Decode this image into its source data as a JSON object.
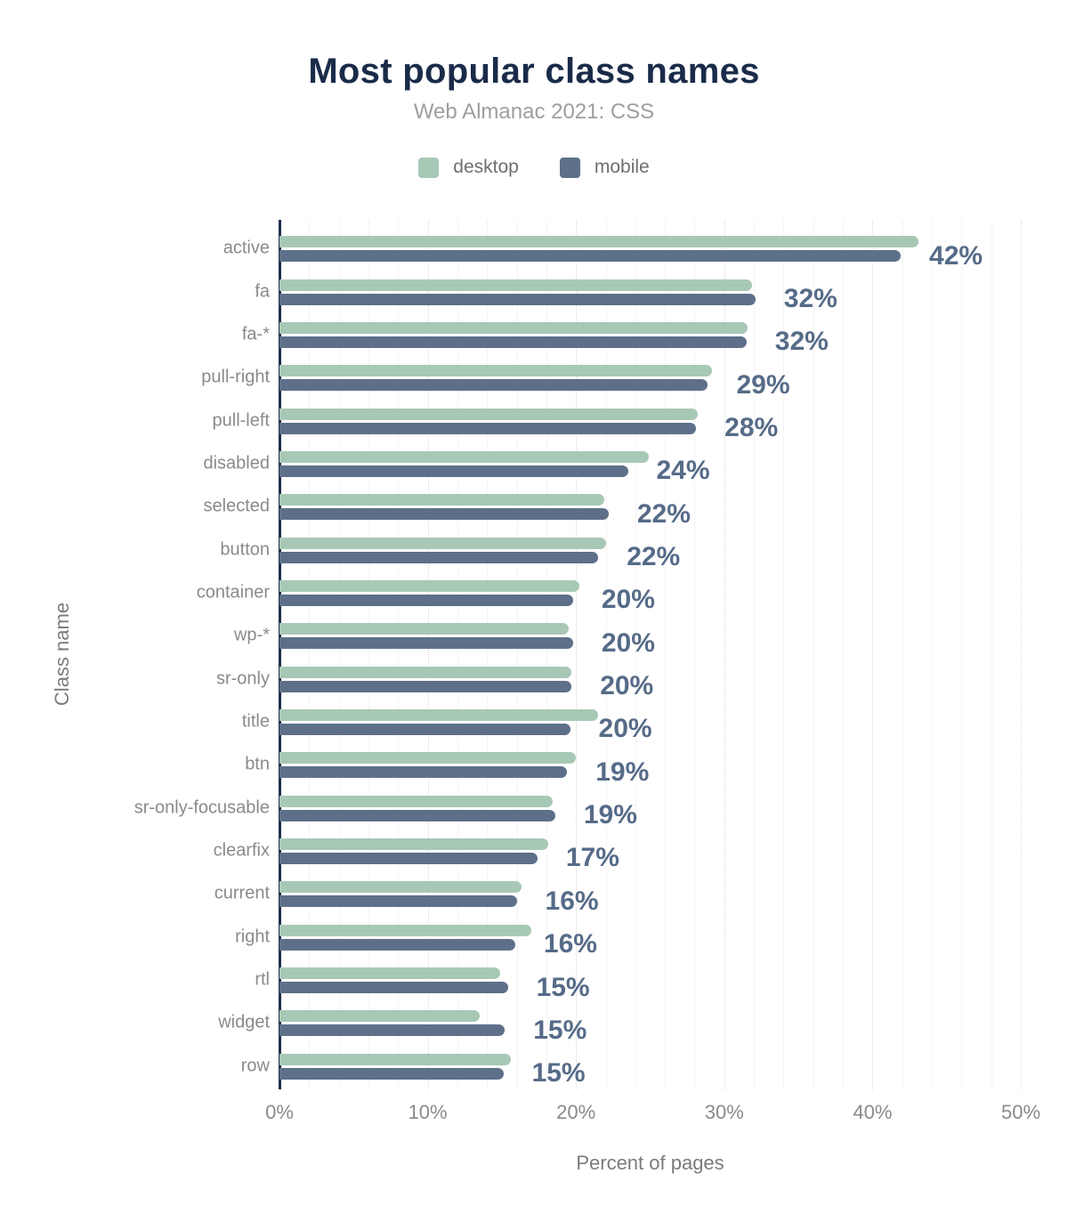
{
  "header": {
    "title": "Most popular class names",
    "subtitle": "Web Almanac 2021: CSS"
  },
  "legend": [
    {
      "label": "desktop",
      "color": "#a8c8b6"
    },
    {
      "label": "mobile",
      "color": "#5e7089"
    }
  ],
  "colors": {
    "title": "#1a2b49",
    "subtitle": "#9e9e9e",
    "desktop_bar": "#a8c8b6",
    "mobile_bar": "#5e7089",
    "value_label": "#566b88",
    "category_label": "#8a8a8a",
    "tick_label": "#8a8a8a",
    "axis_title": "#7b7b7b",
    "axis_line": "#1e2f4d",
    "gridline_minor": "#f4f4f4",
    "gridline_major": "#d9d9d9"
  },
  "x_axis": {
    "title": "Percent of pages",
    "ticks": [
      "0%",
      "10%",
      "20%",
      "30%",
      "40%",
      "50%"
    ]
  },
  "y_axis": {
    "title": "Class name"
  },
  "chart_data": {
    "type": "bar",
    "orientation": "horizontal",
    "title": "Most popular class names",
    "subtitle": "Web Almanac 2021: CSS",
    "xlabel": "Percent of pages",
    "ylabel": "Class name",
    "xlim": [
      0,
      50
    ],
    "x_tick_step": 10,
    "grid": {
      "minor_step": 2,
      "major_step": 10,
      "minor_style": "solid",
      "major_style": "dotted"
    },
    "legend_position": "top",
    "categories": [
      "active",
      "fa",
      "fa-*",
      "pull-right",
      "pull-left",
      "disabled",
      "selected",
      "button",
      "container",
      "wp-*",
      "sr-only",
      "title",
      "btn",
      "sr-only-focusable",
      "clearfix",
      "current",
      "right",
      "rtl",
      "widget",
      "row"
    ],
    "series": [
      {
        "name": "desktop",
        "values": [
          43.1,
          31.9,
          31.6,
          29.2,
          28.2,
          24.9,
          21.9,
          22.0,
          20.2,
          19.5,
          19.7,
          21.5,
          20.0,
          18.4,
          18.1,
          16.3,
          17.0,
          14.9,
          13.5,
          15.6
        ]
      },
      {
        "name": "mobile",
        "values": [
          41.9,
          32.1,
          31.5,
          28.9,
          28.1,
          23.5,
          22.2,
          21.5,
          19.8,
          19.8,
          19.7,
          19.6,
          19.4,
          18.6,
          17.4,
          16.0,
          15.9,
          15.4,
          15.2,
          15.1
        ]
      }
    ],
    "data_labels": [
      "42%",
      "32%",
      "32%",
      "29%",
      "28%",
      "24%",
      "22%",
      "22%",
      "20%",
      "20%",
      "20%",
      "20%",
      "19%",
      "19%",
      "17%",
      "16%",
      "16%",
      "15%",
      "15%",
      "15%"
    ]
  }
}
